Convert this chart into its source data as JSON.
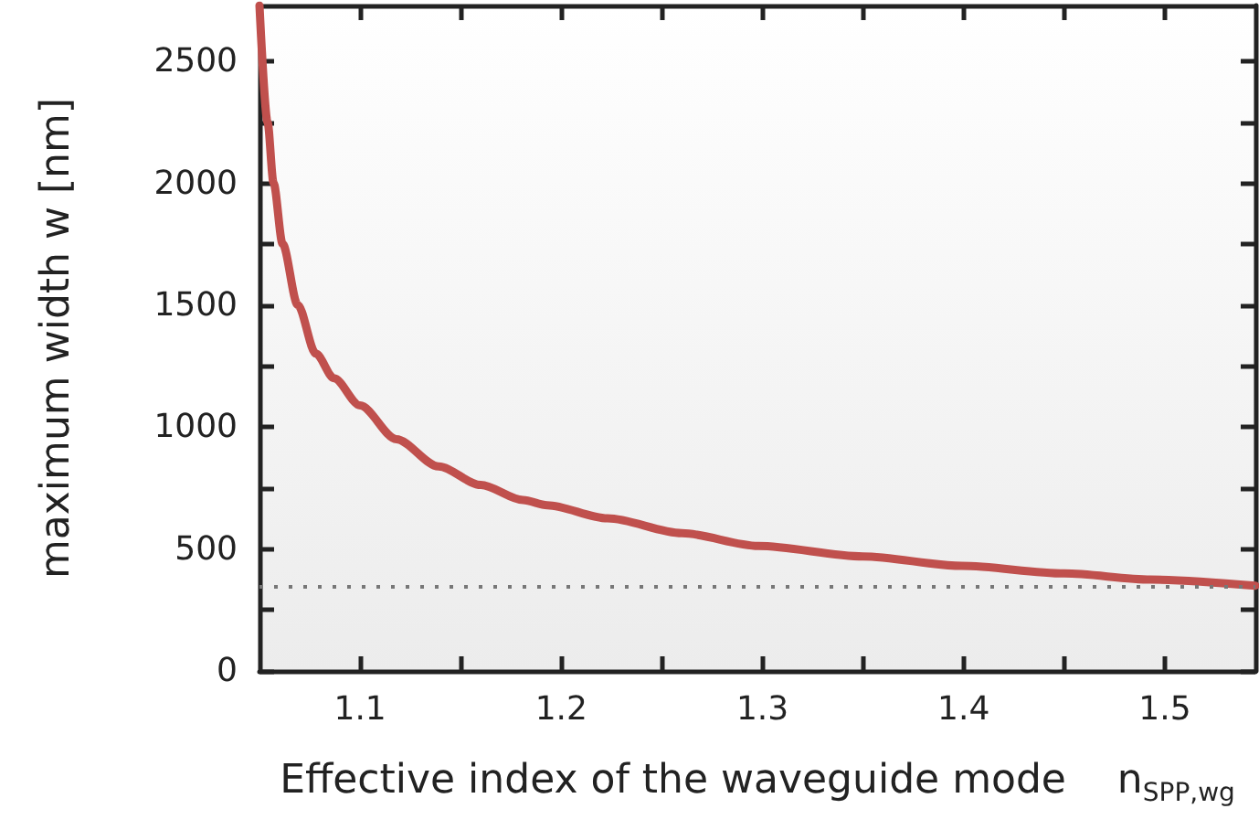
{
  "chart_data": {
    "type": "line",
    "xlabel": "Effective index of the waveguide mode    n$_{SPP,wg}$",
    "ylabel": "maximum width w [nm]",
    "x": [
      1.05,
      1.054,
      1.057,
      1.0615,
      1.069,
      1.078,
      1.087,
      1.1,
      1.118,
      1.139,
      1.16,
      1.181,
      1.193,
      1.223,
      1.26,
      1.298,
      1.35,
      1.399,
      1.45,
      1.493,
      1.545
    ],
    "series": [
      {
        "color": "#c0504d",
        "values": [
          2730,
          2252,
          2002,
          1752,
          1502,
          1302,
          1201,
          1089,
          951,
          839,
          763,
          701,
          680,
          626,
          565,
          513,
          470,
          431,
          400,
          375,
          350
        ]
      }
    ],
    "xlim": [
      1.05,
      1.545
    ],
    "xticks": [
      1.1,
      {
        "value": 1.15,
        "label": null
      },
      1.2,
      {
        "value": 1.25,
        "label": null
      },
      1.3,
      {
        "value": 1.35,
        "label": null
      },
      1.4,
      {
        "value": 1.45,
        "label": null
      },
      1.5
    ],
    "ylim": [
      0,
      2730
    ],
    "yticks": [
      0,
      {
        "value": 250,
        "label": null
      },
      500,
      {
        "value": 750,
        "label": null
      },
      1000,
      {
        "value": 1250,
        "label": null
      },
      1500,
      {
        "value": 1750,
        "label": null
      },
      2000,
      {
        "value": 2250,
        "label": null
      },
      2500
    ],
    "ref_lines": [
      {
        "axis": "y",
        "value": 350,
        "color": "#777777",
        "line_style": "dotted"
      }
    ],
    "grid": false,
    "marker": "none",
    "line_style": "solid"
  }
}
